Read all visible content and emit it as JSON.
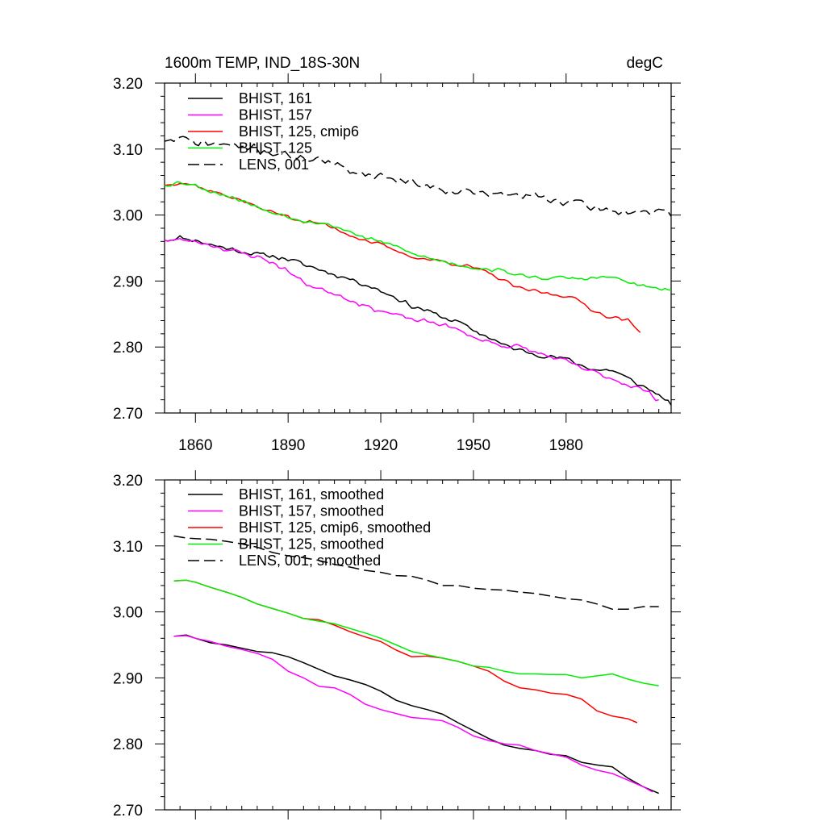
{
  "figure": {
    "title_left": "1600m TEMP, IND_18S-30N",
    "title_right": "degC"
  },
  "chart_data": [
    {
      "type": "line",
      "panel": "top",
      "xlabel": "",
      "ylabel": "",
      "xlim": [
        1850,
        2014
      ],
      "ylim": [
        2.7,
        3.2
      ],
      "x_ticks": [
        1860,
        1890,
        1920,
        1950,
        1980
      ],
      "x_tick_labels": [
        "1860",
        "1890",
        "1920",
        "1950",
        "1980"
      ],
      "y_ticks": [
        2.7,
        2.8,
        2.9,
        3.0,
        3.1,
        3.2
      ],
      "y_tick_labels": [
        "2.70",
        "2.80",
        "2.90",
        "3.00",
        "3.10",
        "3.20"
      ],
      "legend_position": "top-left",
      "series": [
        {
          "name": "BHIST, 161",
          "color": "#000000",
          "dash": "solid",
          "noise": 0.0045,
          "seed": 11,
          "x": [
            1850,
            1855,
            1860,
            1865,
            1870,
            1875,
            1880,
            1885,
            1890,
            1895,
            1900,
            1905,
            1910,
            1915,
            1920,
            1925,
            1930,
            1935,
            1940,
            1945,
            1950,
            1955,
            1960,
            1965,
            1970,
            1975,
            1980,
            1985,
            1990,
            1995,
            2000,
            2005,
            2010,
            2014
          ],
          "values": [
            2.962,
            2.966,
            2.962,
            2.955,
            2.95,
            2.945,
            2.94,
            2.938,
            2.933,
            2.925,
            2.918,
            2.91,
            2.903,
            2.895,
            2.885,
            2.875,
            2.862,
            2.855,
            2.845,
            2.838,
            2.825,
            2.815,
            2.802,
            2.795,
            2.79,
            2.785,
            2.782,
            2.772,
            2.765,
            2.765,
            2.752,
            2.74,
            2.728,
            2.712
          ]
        },
        {
          "name": "BHIST, 157",
          "color": "#ff00ff",
          "dash": "solid",
          "noise": 0.0045,
          "seed": 23,
          "x": [
            1850,
            1855,
            1860,
            1865,
            1870,
            1875,
            1880,
            1885,
            1890,
            1895,
            1900,
            1905,
            1910,
            1915,
            1920,
            1925,
            1930,
            1935,
            1940,
            1945,
            1950,
            1955,
            1960,
            1965,
            1970,
            1975,
            1980,
            1985,
            1990,
            1995,
            2000,
            2005,
            2010
          ],
          "values": [
            2.962,
            2.962,
            2.96,
            2.955,
            2.948,
            2.942,
            2.937,
            2.928,
            2.915,
            2.898,
            2.888,
            2.882,
            2.872,
            2.862,
            2.855,
            2.848,
            2.842,
            2.838,
            2.835,
            2.825,
            2.815,
            2.808,
            2.802,
            2.8,
            2.792,
            2.785,
            2.778,
            2.768,
            2.76,
            2.752,
            2.743,
            2.735,
            2.72
          ]
        },
        {
          "name": "BHIST, 125, cmip6",
          "color": "#ff0000",
          "dash": "solid",
          "noise": 0.0035,
          "seed": 37,
          "x": [
            1850,
            1855,
            1860,
            1865,
            1870,
            1875,
            1880,
            1885,
            1890,
            1895,
            1900,
            1905,
            1910,
            1915,
            1920,
            1925,
            1930,
            1935,
            1940,
            1945,
            1950,
            1955,
            1960,
            1965,
            1970,
            1975,
            1980,
            1985,
            1990,
            1995,
            2000,
            2004
          ],
          "values": [
            3.045,
            3.05,
            3.045,
            3.036,
            3.03,
            3.022,
            3.012,
            3.004,
            2.998,
            2.99,
            2.988,
            2.98,
            2.97,
            2.962,
            2.955,
            2.945,
            2.937,
            2.933,
            2.93,
            2.925,
            2.92,
            2.912,
            2.9,
            2.888,
            2.885,
            2.88,
            2.878,
            2.868,
            2.852,
            2.845,
            2.84,
            2.822
          ]
        },
        {
          "name": "BHIST, 125",
          "color": "#00ee00",
          "dash": "solid",
          "noise": 0.0035,
          "seed": 53,
          "x": [
            1850,
            1855,
            1860,
            1865,
            1870,
            1875,
            1880,
            1885,
            1890,
            1895,
            1900,
            1905,
            1910,
            1915,
            1920,
            1925,
            1930,
            1935,
            1940,
            1945,
            1950,
            1955,
            1960,
            1965,
            1970,
            1975,
            1980,
            1985,
            1990,
            1995,
            2000,
            2005,
            2010,
            2014
          ],
          "values": [
            3.045,
            3.05,
            3.045,
            3.036,
            3.03,
            3.022,
            3.012,
            3.004,
            2.998,
            2.992,
            2.988,
            2.983,
            2.975,
            2.965,
            2.96,
            2.952,
            2.942,
            2.935,
            2.93,
            2.925,
            2.92,
            2.918,
            2.915,
            2.908,
            2.906,
            2.904,
            2.905,
            2.903,
            2.905,
            2.906,
            2.898,
            2.892,
            2.888,
            2.886
          ]
        },
        {
          "name": "LENS, 001",
          "color": "#000000",
          "dash": "dashed",
          "noise": 0.0075,
          "seed": 71,
          "x": [
            1850,
            1855,
            1860,
            1865,
            1870,
            1875,
            1880,
            1885,
            1890,
            1895,
            1900,
            1905,
            1910,
            1915,
            1920,
            1925,
            1930,
            1935,
            1940,
            1945,
            1950,
            1955,
            1960,
            1965,
            1970,
            1975,
            1980,
            1985,
            1990,
            1995,
            2000,
            2005,
            2010,
            2014
          ],
          "values": [
            3.112,
            3.115,
            3.11,
            3.108,
            3.106,
            3.104,
            3.1,
            3.095,
            3.09,
            3.087,
            3.085,
            3.075,
            3.068,
            3.063,
            3.06,
            3.055,
            3.05,
            3.045,
            3.04,
            3.037,
            3.034,
            3.032,
            3.03,
            3.03,
            3.028,
            3.024,
            3.02,
            3.016,
            3.01,
            3.006,
            3.005,
            3.006,
            3.004,
            2.998
          ]
        }
      ]
    },
    {
      "type": "line",
      "panel": "bottom",
      "xlabel": "",
      "ylabel": "",
      "xlim": [
        1850,
        2014
      ],
      "ylim": [
        2.7,
        3.2
      ],
      "x_ticks": [
        1860,
        1890,
        1920,
        1950,
        1980
      ],
      "x_tick_labels": [],
      "y_ticks": [
        2.7,
        2.8,
        2.9,
        3.0,
        3.1,
        3.2
      ],
      "y_tick_labels": [
        "2.70",
        "2.80",
        "2.90",
        "3.00",
        "3.10",
        "3.20"
      ],
      "legend_position": "top-left",
      "series": [
        {
          "name": "BHIST, 161, smoothed",
          "color": "#000000",
          "dash": "solid",
          "x": [
            1853,
            1857,
            1860,
            1865,
            1870,
            1875,
            1880,
            1885,
            1890,
            1895,
            1900,
            1905,
            1910,
            1915,
            1920,
            1925,
            1930,
            1935,
            1940,
            1945,
            1950,
            1955,
            1960,
            1965,
            1970,
            1975,
            1980,
            1985,
            1990,
            1995,
            2000,
            2005,
            2010
          ],
          "values": [
            2.963,
            2.965,
            2.96,
            2.953,
            2.95,
            2.945,
            2.94,
            2.938,
            2.932,
            2.923,
            2.913,
            2.903,
            2.897,
            2.89,
            2.88,
            2.866,
            2.858,
            2.852,
            2.845,
            2.832,
            2.82,
            2.808,
            2.798,
            2.793,
            2.79,
            2.784,
            2.782,
            2.772,
            2.768,
            2.765,
            2.748,
            2.735,
            2.725
          ]
        },
        {
          "name": "BHIST, 157, smoothed",
          "color": "#ff00ff",
          "dash": "solid",
          "x": [
            1853,
            1857,
            1860,
            1865,
            1870,
            1875,
            1880,
            1885,
            1890,
            1895,
            1900,
            1905,
            1910,
            1915,
            1920,
            1925,
            1930,
            1935,
            1940,
            1945,
            1950,
            1955,
            1960,
            1965,
            1970,
            1975,
            1980,
            1985,
            1990,
            1995,
            2000,
            2005,
            2008
          ],
          "values": [
            2.963,
            2.964,
            2.96,
            2.955,
            2.948,
            2.943,
            2.937,
            2.928,
            2.91,
            2.9,
            2.887,
            2.885,
            2.875,
            2.86,
            2.852,
            2.846,
            2.84,
            2.838,
            2.835,
            2.825,
            2.812,
            2.805,
            2.8,
            2.798,
            2.79,
            2.785,
            2.78,
            2.768,
            2.76,
            2.755,
            2.745,
            2.735,
            2.727
          ]
        },
        {
          "name": "BHIST, 125, cmip6, smoothed",
          "color": "#ff0000",
          "dash": "solid",
          "x": [
            1853,
            1857,
            1860,
            1865,
            1870,
            1875,
            1880,
            1885,
            1890,
            1895,
            1900,
            1905,
            1910,
            1915,
            1920,
            1925,
            1930,
            1935,
            1940,
            1945,
            1950,
            1955,
            1960,
            1965,
            1970,
            1975,
            1980,
            1985,
            1990,
            1995,
            2000,
            2003
          ],
          "values": [
            3.047,
            3.048,
            3.045,
            3.037,
            3.03,
            3.022,
            3.012,
            3.005,
            2.998,
            2.99,
            2.988,
            2.98,
            2.97,
            2.962,
            2.955,
            2.942,
            2.932,
            2.933,
            2.93,
            2.925,
            2.918,
            2.91,
            2.895,
            2.885,
            2.882,
            2.877,
            2.875,
            2.868,
            2.85,
            2.842,
            2.838,
            2.832
          ]
        },
        {
          "name": "BHIST, 125, smoothed",
          "color": "#00ee00",
          "dash": "solid",
          "x": [
            1853,
            1857,
            1860,
            1865,
            1870,
            1875,
            1880,
            1885,
            1890,
            1895,
            1900,
            1905,
            1910,
            1915,
            1920,
            1925,
            1930,
            1935,
            1940,
            1945,
            1950,
            1955,
            1960,
            1965,
            1970,
            1975,
            1980,
            1985,
            1990,
            1995,
            2000,
            2005,
            2010
          ],
          "values": [
            3.047,
            3.048,
            3.045,
            3.037,
            3.03,
            3.022,
            3.012,
            3.005,
            2.998,
            2.99,
            2.986,
            2.982,
            2.975,
            2.968,
            2.96,
            2.95,
            2.94,
            2.935,
            2.93,
            2.925,
            2.918,
            2.916,
            2.91,
            2.906,
            2.906,
            2.905,
            2.905,
            2.9,
            2.903,
            2.906,
            2.898,
            2.892,
            2.888
          ]
        },
        {
          "name": "LENS, 001, smoothed",
          "color": "#000000",
          "dash": "dashed",
          "x": [
            1853,
            1857,
            1860,
            1865,
            1870,
            1875,
            1880,
            1885,
            1890,
            1895,
            1900,
            1905,
            1910,
            1915,
            1920,
            1925,
            1930,
            1935,
            1940,
            1945,
            1950,
            1955,
            1960,
            1965,
            1970,
            1975,
            1980,
            1985,
            1990,
            1995,
            2000,
            2005,
            2010
          ],
          "values": [
            3.115,
            3.112,
            3.111,
            3.11,
            3.107,
            3.103,
            3.098,
            3.09,
            3.085,
            3.082,
            3.078,
            3.072,
            3.068,
            3.063,
            3.06,
            3.055,
            3.054,
            3.048,
            3.04,
            3.04,
            3.036,
            3.034,
            3.033,
            3.03,
            3.028,
            3.024,
            3.02,
            3.018,
            3.012,
            3.004,
            3.004,
            3.008,
            3.008
          ]
        }
      ]
    }
  ]
}
